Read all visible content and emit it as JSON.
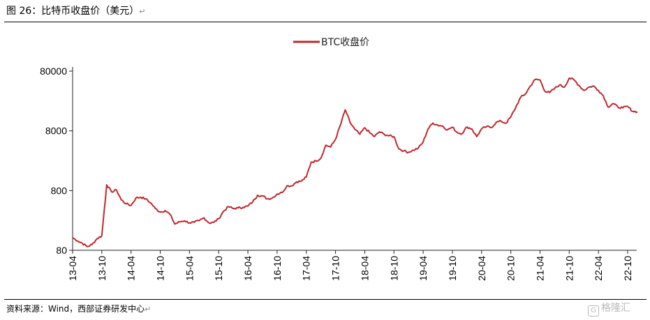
{
  "title": "图 26：比特币收盘价（美元）",
  "source": "资料来源：Wind，西部证券研发中心",
  "watermark": "格隆汇",
  "chart_data": {
    "type": "line",
    "y_scale": "log",
    "ylim": [
      80,
      80000
    ],
    "yticks": [
      80,
      800,
      8000,
      80000
    ],
    "ytick_labels": [
      "80",
      "800",
      "8000",
      "80000"
    ],
    "xtick_labels": [
      "13-04",
      "13-10",
      "14-04",
      "14-10",
      "15-04",
      "15-10",
      "16-04",
      "16-10",
      "17-04",
      "17-10",
      "18-04",
      "18-10",
      "19-04",
      "19-10",
      "20-04",
      "20-10",
      "21-04",
      "21-10",
      "22-04",
      "22-10"
    ],
    "legend": "top-center",
    "series": [
      {
        "name": "BTC收盘价",
        "color": "#c0282d",
        "x": [
          "2013-04",
          "2013-05",
          "2013-06",
          "2013-07",
          "2013-08",
          "2013-09",
          "2013-10",
          "2013-11",
          "2013-12",
          "2014-01",
          "2014-02",
          "2014-03",
          "2014-04",
          "2014-05",
          "2014-06",
          "2014-07",
          "2014-08",
          "2014-09",
          "2014-10",
          "2014-11",
          "2014-12",
          "2015-01",
          "2015-02",
          "2015-03",
          "2015-04",
          "2015-05",
          "2015-06",
          "2015-07",
          "2015-08",
          "2015-09",
          "2015-10",
          "2015-11",
          "2015-12",
          "2016-01",
          "2016-02",
          "2016-03",
          "2016-04",
          "2016-05",
          "2016-06",
          "2016-07",
          "2016-08",
          "2016-09",
          "2016-10",
          "2016-11",
          "2016-12",
          "2017-01",
          "2017-02",
          "2017-03",
          "2017-04",
          "2017-05",
          "2017-06",
          "2017-07",
          "2017-08",
          "2017-09",
          "2017-10",
          "2017-11",
          "2017-12",
          "2018-01",
          "2018-02",
          "2018-03",
          "2018-04",
          "2018-05",
          "2018-06",
          "2018-07",
          "2018-08",
          "2018-09",
          "2018-10",
          "2018-11",
          "2018-12",
          "2019-01",
          "2019-02",
          "2019-03",
          "2019-04",
          "2019-05",
          "2019-06",
          "2019-07",
          "2019-08",
          "2019-09",
          "2019-10",
          "2019-11",
          "2019-12",
          "2020-01",
          "2020-02",
          "2020-03",
          "2020-04",
          "2020-05",
          "2020-06",
          "2020-07",
          "2020-08",
          "2020-09",
          "2020-10",
          "2020-11",
          "2020-12",
          "2021-01",
          "2021-02",
          "2021-03",
          "2021-04",
          "2021-05",
          "2021-06",
          "2021-07",
          "2021-08",
          "2021-09",
          "2021-10",
          "2021-11",
          "2021-12",
          "2022-01",
          "2022-02",
          "2022-03",
          "2022-04",
          "2022-05",
          "2022-06",
          "2022-07",
          "2022-08",
          "2022-09",
          "2022-10",
          "2022-11",
          "2022-12"
        ],
        "y": [
          130,
          115,
          105,
          92,
          100,
          125,
          140,
          1000,
          760,
          820,
          560,
          480,
          450,
          600,
          620,
          580,
          500,
          400,
          350,
          370,
          320,
          220,
          240,
          250,
          230,
          235,
          250,
          280,
          230,
          235,
          270,
          360,
          430,
          400,
          410,
          420,
          440,
          520,
          670,
          650,
          580,
          600,
          700,
          740,
          960,
          960,
          1120,
          1150,
          1350,
          2400,
          2500,
          2800,
          4600,
          4300,
          5800,
          10000,
          18000,
          11000,
          8400,
          7000,
          9000,
          7500,
          6400,
          7700,
          7000,
          6600,
          6400,
          4000,
          3700,
          3500,
          3800,
          4100,
          5200,
          8600,
          10800,
          10000,
          9600,
          8300,
          9200,
          7500,
          7200,
          9300,
          8600,
          6400,
          8600,
          9400,
          9100,
          11100,
          11600,
          10700,
          13700,
          19600,
          29000,
          33000,
          45000,
          58000,
          57000,
          37000,
          35000,
          41000,
          47000,
          43000,
          61000,
          57000,
          46000,
          38000,
          43000,
          45000,
          38000,
          31000,
          20000,
          23000,
          20000,
          19400,
          20500,
          17000,
          16700
        ]
      }
    ]
  }
}
